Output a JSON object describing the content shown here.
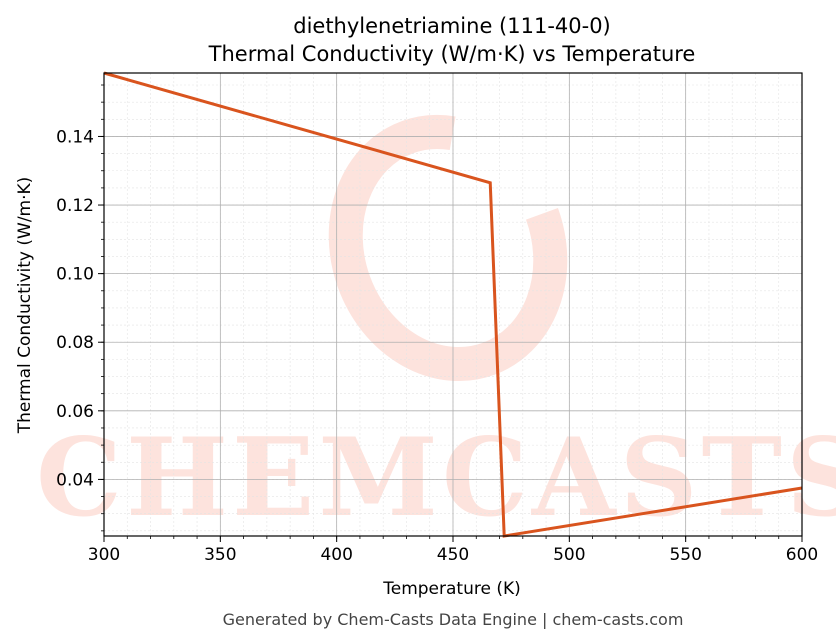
{
  "chart_data": {
    "type": "line",
    "title": "diethylenetriamine (111-40-0)",
    "subtitle": "Thermal Conductivity (W/m·K) vs Temperature",
    "xlabel": "Temperature (K)",
    "ylabel": "Thermal Conductivity (W/m·K)",
    "xlim": [
      300,
      600
    ],
    "ylim": [
      0.0235,
      0.1585
    ],
    "x_ticks": [
      300,
      350,
      400,
      450,
      500,
      550,
      600
    ],
    "x_tick_labels": [
      "300",
      "350",
      "400",
      "450",
      "500",
      "550",
      "600"
    ],
    "y_ticks": [
      0.04,
      0.06,
      0.08,
      0.1,
      0.12,
      0.14
    ],
    "y_tick_labels": [
      "0.04",
      "0.06",
      "0.08",
      "0.10",
      "0.12",
      "0.14"
    ],
    "grid": true,
    "series": [
      {
        "color": "#d9541e",
        "x": [
          300,
          466,
          472,
          600
        ],
        "y": [
          0.1585,
          0.1265,
          0.0235,
          0.0375
        ]
      }
    ]
  },
  "watermark": {
    "text": "CHEMCASTS",
    "color": "#fde3dd"
  },
  "footer": {
    "text": "Generated by Chem-Casts Data Engine | chem-casts.com"
  }
}
